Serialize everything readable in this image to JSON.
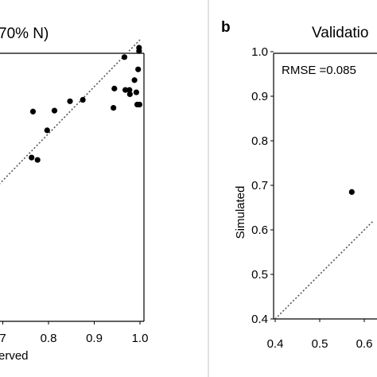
{
  "colors": {
    "point": "#000000",
    "axis": "#000000",
    "reference_line": "#555555",
    "panel_border": "#d9d9d9",
    "background": "#ffffff"
  },
  "chart_data": [
    {
      "type": "scatter",
      "title": "70% N)",
      "xlabel": "erved",
      "ylabel": "",
      "xticks": [
        "7",
        "0.8",
        "0.9",
        "1.0"
      ],
      "xlim": [
        0.67,
        1.01
      ],
      "ylim": [
        0.4,
        1.01
      ],
      "reference_line": "1:1 dotted",
      "grid": false,
      "points": [
        {
          "x": 0.998,
          "y": 0.983
        },
        {
          "x": 0.998,
          "y": 0.976
        },
        {
          "x": 0.966,
          "y": 0.963
        },
        {
          "x": 0.996,
          "y": 0.937
        },
        {
          "x": 0.988,
          "y": 0.914
        },
        {
          "x": 0.944,
          "y": 0.896
        },
        {
          "x": 0.968,
          "y": 0.893
        },
        {
          "x": 0.977,
          "y": 0.893
        },
        {
          "x": 0.978,
          "y": 0.884
        },
        {
          "x": 0.992,
          "y": 0.888
        },
        {
          "x": 0.875,
          "y": 0.872
        },
        {
          "x": 0.847,
          "y": 0.869
        },
        {
          "x": 0.994,
          "y": 0.862
        },
        {
          "x": 0.999,
          "y": 0.862
        },
        {
          "x": 0.942,
          "y": 0.855
        },
        {
          "x": 0.766,
          "y": 0.847
        },
        {
          "x": 0.813,
          "y": 0.849
        },
        {
          "x": 0.797,
          "y": 0.807
        },
        {
          "x": 0.763,
          "y": 0.749
        },
        {
          "x": 0.776,
          "y": 0.744
        }
      ]
    },
    {
      "type": "scatter",
      "panel_label": "b",
      "title": "Validatio",
      "xlabel": "",
      "ylabel": "Simulated",
      "annotation": "RMSE =0.085",
      "xticks": [
        "0.4",
        "0.5",
        "0.6"
      ],
      "yticks": [
        "0.4",
        "0.5",
        "0.6",
        "0.7",
        "0.8",
        "0.9",
        "1.0"
      ],
      "xlim": [
        0.4,
        1.0
      ],
      "ylim": [
        0.4,
        1.0
      ],
      "reference_line": "1:1 dotted",
      "grid": false,
      "points": [
        {
          "x": 0.572,
          "y": 0.685
        }
      ]
    }
  ]
}
